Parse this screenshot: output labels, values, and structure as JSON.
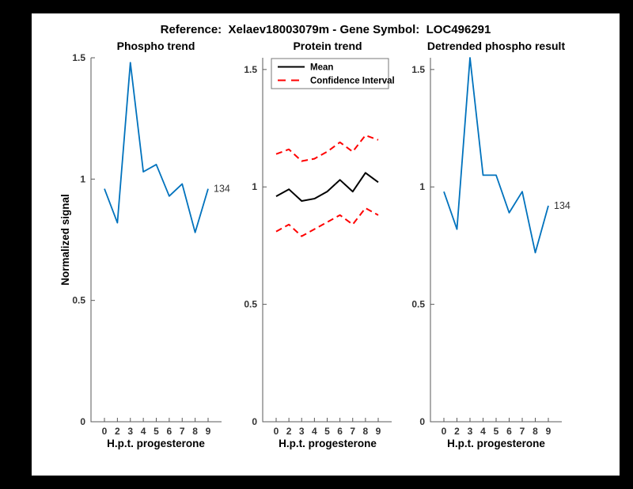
{
  "figure_title": "Reference:  Xelaev18003079m - Gene Symbol:  LOC496291",
  "colors": {
    "page_background": "#000000",
    "figure_background": "#ffffff",
    "phospho_line": "#0072BD",
    "mean_line": "#000000",
    "confidence_line": "#FF0000",
    "axis": "#5a5a5a",
    "tick_text": "#333333",
    "legend_border": "#777777"
  },
  "chart_data": [
    {
      "type": "line",
      "title": "Phospho trend",
      "xlabel": "H.p.t. progesterone",
      "ylabel": "Normalized signal",
      "x_tick_labels": [
        "0",
        "2",
        "3",
        "4",
        "5",
        "6",
        "7",
        "8",
        "9"
      ],
      "y_ticks": [
        0,
        0.5,
        1,
        1.5
      ],
      "ylim": [
        0,
        1.5
      ],
      "grid": false,
      "series": [
        {
          "name": "phospho",
          "color": "#0072BD",
          "style": "solid",
          "width": 1.8,
          "values": [
            0.96,
            0.82,
            1.48,
            1.03,
            1.06,
            0.93,
            0.98,
            0.78,
            0.96
          ]
        }
      ],
      "end_label": "134"
    },
    {
      "type": "line",
      "title": "Protein trend",
      "xlabel": "H.p.t. progesterone",
      "ylabel": "",
      "x_tick_labels": [
        "0",
        "2",
        "3",
        "4",
        "5",
        "6",
        "7",
        "8",
        "9"
      ],
      "y_ticks": [
        0,
        0.5,
        1,
        1.5
      ],
      "ylim": [
        0,
        1.55
      ],
      "grid": false,
      "series": [
        {
          "name": "mean",
          "color": "#000000",
          "style": "solid",
          "width": 2,
          "values": [
            0.96,
            0.99,
            0.94,
            0.95,
            0.98,
            1.03,
            0.98,
            1.06,
            1.02
          ]
        },
        {
          "name": "confidence-upper",
          "color": "#FF0000",
          "style": "dashed",
          "width": 2,
          "values": [
            1.14,
            1.16,
            1.11,
            1.12,
            1.15,
            1.19,
            1.15,
            1.22,
            1.2
          ]
        },
        {
          "name": "confidence-lower",
          "color": "#FF0000",
          "style": "dashed",
          "width": 2,
          "values": [
            0.81,
            0.84,
            0.79,
            0.82,
            0.85,
            0.88,
            0.84,
            0.91,
            0.88
          ]
        }
      ],
      "legend": {
        "position": "top-left",
        "entries": [
          {
            "label": "Mean",
            "color": "#000000",
            "style": "solid"
          },
          {
            "label": "Confidence Interval",
            "color": "#FF0000",
            "style": "dashed"
          }
        ]
      }
    },
    {
      "type": "line",
      "title": "Detrended phospho result",
      "xlabel": "H.p.t. progesterone",
      "ylabel": "",
      "x_tick_labels": [
        "0",
        "2",
        "3",
        "4",
        "5",
        "6",
        "7",
        "8",
        "9"
      ],
      "y_ticks": [
        0,
        0.5,
        1,
        1.5
      ],
      "ylim": [
        0,
        1.55
      ],
      "grid": false,
      "series": [
        {
          "name": "detrended-phospho",
          "color": "#0072BD",
          "style": "solid",
          "width": 1.8,
          "values": [
            0.98,
            0.82,
            1.55,
            1.05,
            1.05,
            0.89,
            0.98,
            0.72,
            0.92
          ]
        }
      ],
      "end_label": "134"
    }
  ]
}
